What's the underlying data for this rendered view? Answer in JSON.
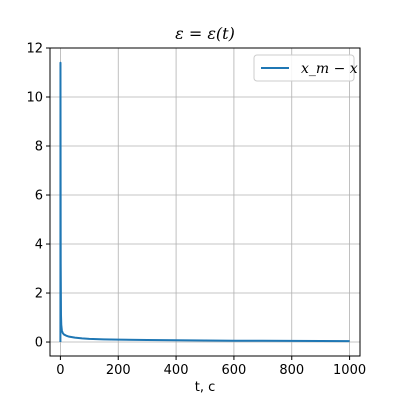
{
  "chart_data": {
    "type": "line",
    "title": "ε = ε(t)",
    "xlabel": "t, c",
    "ylabel": "",
    "xlim": [
      -36,
      1036
    ],
    "ylim": [
      -0.57,
      12
    ],
    "x_ticks": [
      0,
      200,
      400,
      600,
      800,
      1000
    ],
    "x_tick_labels": [
      "0",
      "200",
      "400",
      "600",
      "800",
      "1000"
    ],
    "y_ticks": [
      0,
      2,
      4,
      6,
      8,
      10,
      12
    ],
    "y_tick_labels": [
      "0",
      "2",
      "4",
      "6",
      "8",
      "10",
      "12"
    ],
    "grid": true,
    "legend_position": "top-right",
    "colors": {
      "series": "#1f77b4",
      "grid": "#b0b0b0",
      "axes": "#000000"
    },
    "series": [
      {
        "name": "x_m − x",
        "x": [
          0,
          0.2,
          0.5,
          1,
          2,
          3,
          5,
          8,
          12,
          20,
          30,
          50,
          75,
          100,
          150,
          200,
          300,
          400,
          500,
          600,
          700,
          800,
          900,
          1000
        ],
        "y": [
          0,
          11.4,
          8.0,
          3.2,
          1.1,
          0.7,
          0.47,
          0.37,
          0.31,
          0.26,
          0.22,
          0.18,
          0.15,
          0.13,
          0.11,
          0.1,
          0.085,
          0.075,
          0.065,
          0.055,
          0.05,
          0.045,
          0.04,
          0.035
        ]
      }
    ]
  }
}
